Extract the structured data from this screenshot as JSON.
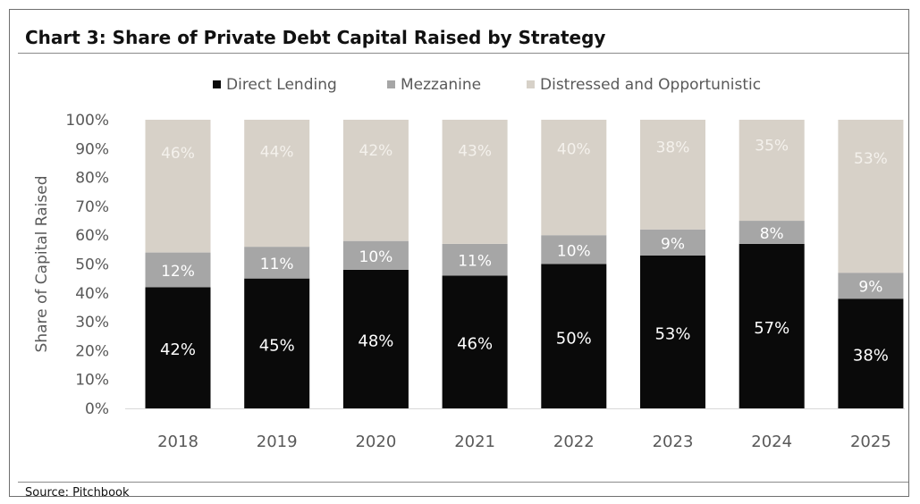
{
  "title": "Chart 3: Share of Private Debt Capital Raised by Strategy",
  "source": "Source: Pitchbook",
  "colors": {
    "direct_lending": "#0a0a0a",
    "mezzanine": "#a6a6a6",
    "distressed": "#d7d1c8",
    "label_dark_bg": "#ffffff",
    "label_light_bg": "#f4f1ec"
  },
  "chart_data": {
    "type": "bar",
    "stacked": true,
    "title": "Chart 3: Share of Private Debt Capital Raised by Strategy",
    "xlabel": "",
    "ylabel": "Share of Capital Raised",
    "ylim": [
      0,
      100
    ],
    "y_ticks": [
      "0%",
      "10%",
      "20%",
      "30%",
      "40%",
      "50%",
      "60%",
      "70%",
      "80%",
      "90%",
      "100%"
    ],
    "legend_position": "top",
    "grid": false,
    "categories": [
      "2018",
      "2019",
      "2020",
      "2021",
      "2022",
      "2023",
      "2024",
      "2025"
    ],
    "series": [
      {
        "name": "Direct Lending",
        "values": [
          42,
          45,
          48,
          46,
          50,
          53,
          57,
          38
        ],
        "labels": [
          "42%",
          "45%",
          "48%",
          "46%",
          "50%",
          "53%",
          "57%",
          "38%"
        ]
      },
      {
        "name": "Mezzanine",
        "values": [
          12,
          11,
          10,
          11,
          10,
          9,
          8,
          9
        ],
        "labels": [
          "12%",
          "11%",
          "10%",
          "11%",
          "10%",
          "9%",
          "8%",
          "9%"
        ]
      },
      {
        "name": "Distressed and Opportunistic",
        "values": [
          46,
          44,
          42,
          43,
          40,
          38,
          35,
          53
        ],
        "labels": [
          "46%",
          "44%",
          "42%",
          "43%",
          "40%",
          "38%",
          "35%",
          "53%"
        ]
      }
    ]
  }
}
